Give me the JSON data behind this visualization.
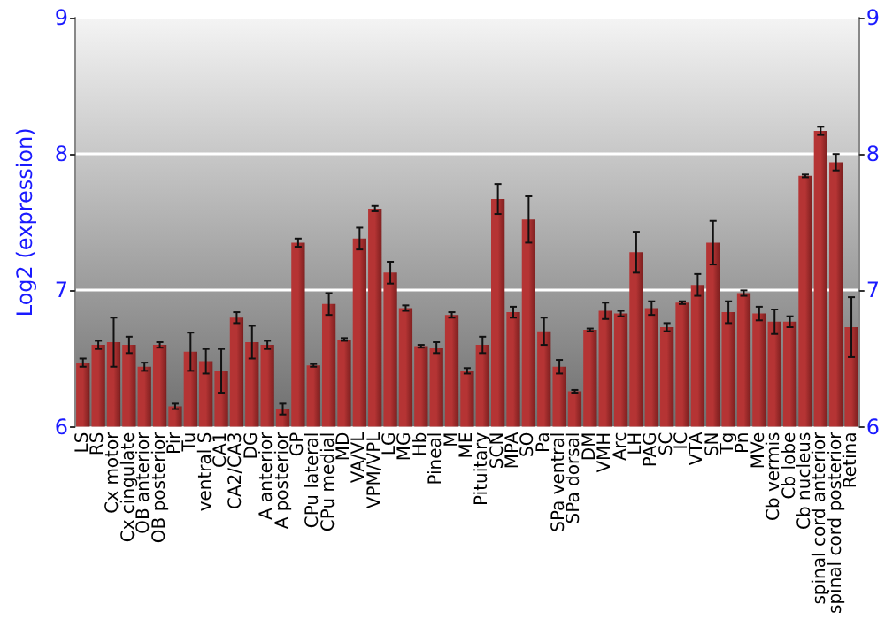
{
  "chart_data": {
    "type": "bar",
    "ylabel": "Log2 (expression)",
    "categories": [
      "LS",
      "RS",
      "Cx motor",
      "Cx cingulate",
      "OB anterior",
      "OB posterior",
      "Pir",
      "Tu",
      "ventral S",
      "CA1",
      "CA2/CA3",
      "DG",
      "A anterior",
      "A posterior",
      "GP",
      "CPu lateral",
      "CPu medial",
      "MD",
      "VA/VL",
      "VPM/VPL",
      "LG",
      "MG",
      "Hb",
      "Pineal",
      "M",
      "ME",
      "Pituitary",
      "SCN",
      "MPA",
      "SO",
      "Pa",
      "SPa ventral",
      "SPa dorsal",
      "DM",
      "VMH",
      "Arc",
      "LH",
      "PAG",
      "SC",
      "IC",
      "VTA",
      "SN",
      "Tg",
      "Pn",
      "MVe",
      "Cb vermis",
      "Cb lobe",
      "Cb nucleus",
      "spinal cord anterior",
      "spinal cord posterior",
      "Retina"
    ],
    "values": [
      6.47,
      6.6,
      6.62,
      6.6,
      6.44,
      6.6,
      6.15,
      6.55,
      6.48,
      6.41,
      6.8,
      6.62,
      6.6,
      6.13,
      7.35,
      6.45,
      6.9,
      6.64,
      7.38,
      7.6,
      7.13,
      6.87,
      6.59,
      6.58,
      6.82,
      6.41,
      6.6,
      7.67,
      6.84,
      7.52,
      6.7,
      6.44,
      6.26,
      6.71,
      6.85,
      6.83,
      7.28,
      6.87,
      6.73,
      6.91,
      7.04,
      7.35,
      6.84,
      6.98,
      6.83,
      6.77,
      6.77,
      7.84,
      8.17,
      7.94,
      6.73
    ],
    "errors": [
      0.03,
      0.03,
      0.18,
      0.06,
      0.03,
      0.02,
      0.02,
      0.14,
      0.09,
      0.16,
      0.04,
      0.12,
      0.03,
      0.04,
      0.03,
      0.01,
      0.08,
      0.01,
      0.08,
      0.02,
      0.08,
      0.02,
      0.01,
      0.04,
      0.02,
      0.02,
      0.06,
      0.11,
      0.04,
      0.17,
      0.1,
      0.05,
      0.01,
      0.01,
      0.06,
      0.02,
      0.15,
      0.05,
      0.03,
      0.01,
      0.08,
      0.16,
      0.08,
      0.02,
      0.05,
      0.09,
      0.04,
      0.01,
      0.03,
      0.06,
      0.22
    ],
    "color": "#b53434",
    "ylim": [
      6,
      9
    ],
    "yticks": [
      6,
      7,
      8,
      9
    ],
    "y2lim": [
      6,
      9
    ],
    "y2ticks": [
      6,
      7,
      8,
      9
    ],
    "grid": "y"
  }
}
